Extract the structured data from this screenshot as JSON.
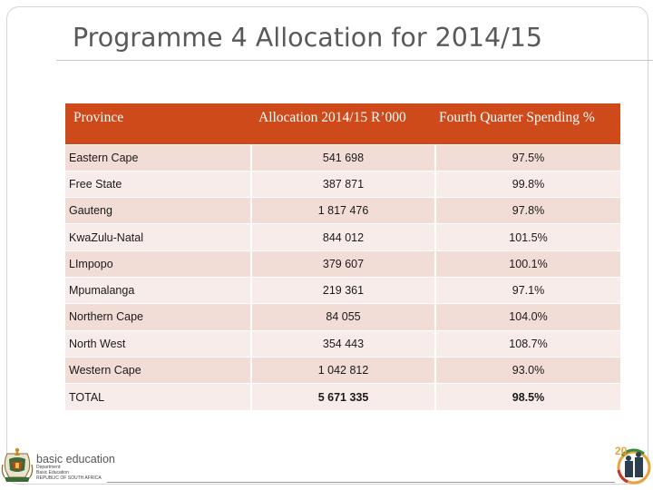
{
  "title": "Programme 4 Allocation for 2014/15",
  "table": {
    "headers": {
      "province": "Province",
      "allocation": "Allocation 2014/15 R’000",
      "spending": "Fourth Quarter Spending %"
    },
    "rows": [
      {
        "province": "Eastern Cape",
        "allocation": "541 698",
        "spending": "97.5%"
      },
      {
        "province": "Free State",
        "allocation": "387 871",
        "spending": "99.8%"
      },
      {
        "province": "Gauteng",
        "allocation": "1 817 476",
        "spending": "97.8%"
      },
      {
        "province": "KwaZulu-Natal",
        "allocation": "844 012",
        "spending": "101.5%"
      },
      {
        "province": "LImpopo",
        "allocation": "379 607",
        "spending": "100.1%"
      },
      {
        "province": "Mpumalanga",
        "allocation": "219 361",
        "spending": "97.1%"
      },
      {
        "province": "Northern Cape",
        "allocation": "84 055",
        "spending": "104.0%"
      },
      {
        "province": "North West",
        "allocation": "354 443",
        "spending": "108.7%"
      },
      {
        "province": "Western Cape",
        "allocation": "1 042 812",
        "spending": "93.0%"
      },
      {
        "province": "TOTAL",
        "allocation": "5 671 335",
        "spending": "98.5%"
      }
    ]
  },
  "footer": {
    "brand": "basic education",
    "dept_lines": [
      "Department:",
      "Basic Education",
      "REPUBLIC OF SOUTH AFRICA"
    ],
    "badge": "20"
  },
  "colors": {
    "header_bg": "#cf4a1a",
    "row_odd": "#f2dcd6",
    "row_even": "#f8ecea",
    "title": "#595959"
  }
}
